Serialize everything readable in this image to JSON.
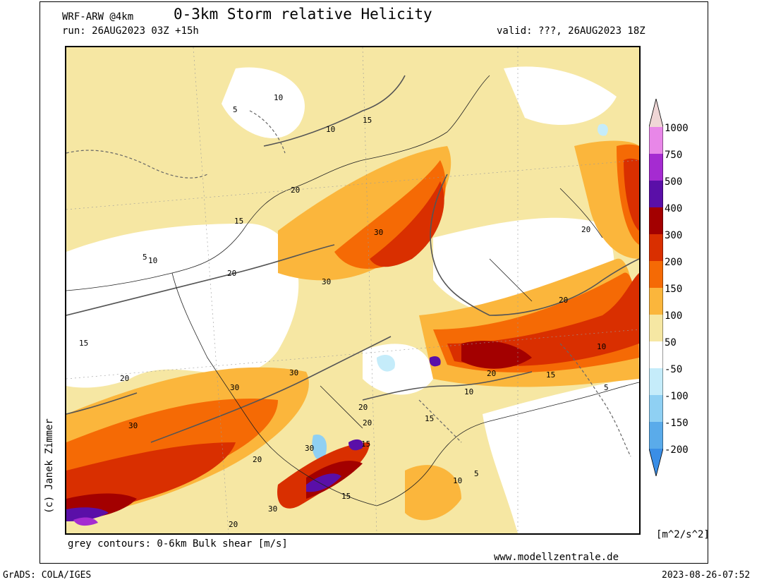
{
  "header": {
    "model": "WRF-ARW @4km",
    "title": "0-3km Storm relative Helicity",
    "run": "run: 26AUG2023 03Z +15h",
    "valid": "valid: ???, 26AUG2023 18Z"
  },
  "footer": {
    "copyright": "(c) Janek Zimmer",
    "contour_note": "grey contours: 0-6km Bulk shear [m/s]",
    "website": "www.modellzentrale.de",
    "software": "GrADS: COLA/IGES",
    "timestamp": "2023-08-26-07:52"
  },
  "legend": {
    "units": "[m^2/s^2]",
    "labels": [
      "1000",
      "750",
      "500",
      "400",
      "300",
      "200",
      "150",
      "100",
      "50",
      "-50",
      "-100",
      "-150",
      "-200"
    ],
    "colors": [
      "#efd6d6",
      "#e887e8",
      "#a52bd1",
      "#5a0fa8",
      "#a30000",
      "#d92f00",
      "#f56a05",
      "#fbb63c",
      "#f6e7a3",
      "#ffffff",
      "#c5ecfa",
      "#8fd0f3",
      "#5aabea",
      "#3a8ee6"
    ]
  },
  "map": {
    "contour_labels": [
      "5",
      "10",
      "15",
      "20",
      "30",
      "10",
      "15",
      "20",
      "30",
      "30",
      "20",
      "15",
      "10",
      "5",
      "30",
      "20",
      "15",
      "20",
      "30",
      "20",
      "10",
      "5",
      "15",
      "20",
      "10",
      "20",
      "30",
      "20",
      "15",
      "10",
      "5",
      "30",
      "15",
      "20"
    ]
  }
}
